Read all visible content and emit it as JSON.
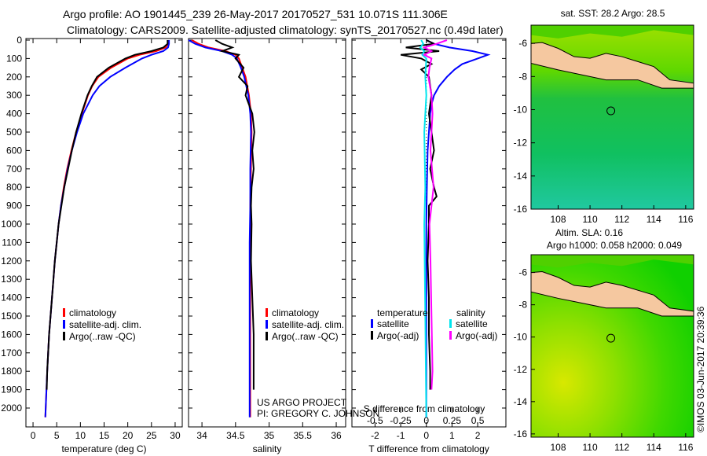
{
  "title_line1": "Argo profile: AO 1901445_239 26-May-2017 20170527_531 10.071S 111.306E",
  "title_line2": "Climatology: CARS2009. Satellite-adjusted climatology: synTS_20170527.nc (0.49d later)",
  "colors": {
    "climatology": "#ff0000",
    "satellite": "#0000ff",
    "argo": "#000000",
    "sal_satellite": "#00e5ee",
    "sal_argo": "#ff00ff",
    "land": "#f5c8a0"
  },
  "chart_data": [
    {
      "type": "line",
      "id": "temperature",
      "xlabel": "temperature (deg C)",
      "ylim": [
        2050,
        0
      ],
      "xlim": [
        -1.5,
        31.5
      ],
      "xticks": [
        "0",
        "5",
        "10",
        "15",
        "20",
        "25",
        "30"
      ],
      "xtick_values": [
        0,
        5,
        10,
        15,
        20,
        25,
        30
      ],
      "yticks": [
        "0",
        "100",
        "200",
        "300",
        "400",
        "500",
        "600",
        "700",
        "800",
        "900",
        "1000",
        "1100",
        "1200",
        "1300",
        "1400",
        "1500",
        "1600",
        "1700",
        "1800",
        "1900",
        "2000"
      ],
      "legend": [
        "climatology",
        "satellite-adj. clim.",
        "Argo(..raw -QC)"
      ],
      "series": [
        {
          "name": "climatology",
          "color": "#ff0000",
          "depth": [
            0,
            20,
            40,
            60,
            80,
            100,
            150,
            200,
            250,
            300,
            400,
            500,
            600,
            700,
            800,
            900,
            1000,
            1200,
            1400,
            1600,
            1800,
            2050
          ],
          "values": [
            28.5,
            28.5,
            28,
            26,
            22.5,
            20,
            16.5,
            13.8,
            12.5,
            11.6,
            10.3,
            9.1,
            8.1,
            7.2,
            6.5,
            5.9,
            5.4,
            4.6,
            4,
            3.4,
            3,
            2.6
          ]
        },
        {
          "name": "satellite-adj. clim.",
          "color": "#0000ff",
          "depth": [
            0,
            20,
            40,
            60,
            80,
            100,
            150,
            200,
            250,
            300,
            400,
            500,
            600,
            700,
            800,
            900,
            1000,
            1200,
            1400,
            1600,
            1800,
            2050
          ],
          "values": [
            28.7,
            28.7,
            28.5,
            27.5,
            25,
            23,
            19.5,
            16.3,
            14,
            12.6,
            10.6,
            9.3,
            8.2,
            7.3,
            6.6,
            5.9,
            5.4,
            4.6,
            4,
            3.4,
            3,
            2.6
          ]
        },
        {
          "name": "Argo(..raw -QC)",
          "color": "#000000",
          "depth": [
            0,
            20,
            40,
            60,
            80,
            100,
            150,
            200,
            250,
            300,
            400,
            500,
            600,
            700,
            800,
            900,
            1000,
            1200,
            1400,
            1600,
            1800,
            1900
          ],
          "values": [
            28.4,
            28.4,
            27.5,
            25,
            21.5,
            19.5,
            16,
            13.5,
            12.4,
            11.5,
            10.2,
            9.1,
            8.2,
            7.4,
            6.6,
            6,
            5.4,
            4.6,
            4,
            3.4,
            3,
            2.9
          ]
        }
      ]
    },
    {
      "type": "line",
      "id": "salinity",
      "xlabel": "salinity",
      "ylim": [
        2050,
        0
      ],
      "xlim": [
        33.8,
        36.14
      ],
      "xticks": [
        "34",
        "34.5",
        "35",
        "35.5",
        "36"
      ],
      "xtick_values": [
        34,
        34.5,
        35,
        35.5,
        36
      ],
      "legend": [
        "climatology",
        "satellite-adj. clim.",
        "Argo(..raw -QC)"
      ],
      "annotation": [
        "US ARGO PROJECT",
        "PI: GREGORY C. JOHNSON"
      ],
      "series": [
        {
          "name": "climatology",
          "color": "#ff0000",
          "depth": [
            0,
            20,
            40,
            60,
            80,
            100,
            150,
            200,
            300,
            400,
            500,
            700,
            900,
            1100,
            1300,
            1500,
            1700,
            2050
          ],
          "values": [
            33.85,
            33.95,
            34.1,
            34.35,
            34.5,
            34.55,
            34.6,
            34.65,
            34.7,
            34.73,
            34.74,
            34.73,
            34.72,
            34.72,
            34.72,
            34.72,
            34.72,
            34.72
          ]
        },
        {
          "name": "satellite-adj. clim.",
          "color": "#0000ff",
          "depth": [
            0,
            20,
            40,
            60,
            80,
            100,
            150,
            200,
            300,
            400,
            500,
            700,
            900,
            1100,
            1300,
            1500,
            1700,
            2050
          ],
          "values": [
            33.8,
            33.9,
            34.05,
            34.3,
            34.45,
            34.52,
            34.58,
            34.63,
            34.69,
            34.72,
            34.73,
            34.72,
            34.72,
            34.71,
            34.71,
            34.71,
            34.71,
            34.71
          ]
        },
        {
          "name": "Argo(..raw -QC)",
          "color": "#000000",
          "depth": [
            0,
            20,
            40,
            60,
            80,
            100,
            150,
            200,
            250,
            300,
            400,
            500,
            600,
            700,
            800,
            900,
            1000,
            1200,
            1400,
            1600,
            1800,
            1900
          ],
          "values": [
            34.2,
            34.3,
            34.45,
            34.3,
            34.55,
            34.5,
            34.62,
            34.55,
            34.68,
            34.65,
            34.75,
            34.78,
            34.75,
            34.77,
            34.74,
            34.73,
            34.74,
            34.73,
            34.75,
            34.77,
            34.77,
            34.77
          ]
        }
      ]
    },
    {
      "type": "line",
      "id": "difference",
      "xlabel": "T difference from climatology",
      "xlabel2": "S difference from climatology",
      "ylim": [
        2050,
        0
      ],
      "xlim": [
        -2.9,
        3.1
      ],
      "xticks": [
        "-2",
        "-1",
        "0",
        "1",
        "2"
      ],
      "xtick_values": [
        -2,
        -1,
        0,
        1,
        2
      ],
      "xticks2": [
        "-0.5",
        "-0.25",
        "0",
        "0.25",
        "0.5"
      ],
      "xtick2_values": [
        -0.5,
        -0.25,
        0,
        0.25,
        0.5
      ],
      "legend_headers": [
        "temperature",
        "salinity"
      ],
      "legend": [
        "satellite",
        "Argo(-adj)",
        "satellite",
        "Argo(-adj)"
      ],
      "series": [
        {
          "name": "T satellite",
          "color": "#0000ff",
          "depth": [
            0,
            20,
            40,
            60,
            80,
            100,
            130,
            160,
            200,
            250,
            300,
            350,
            400,
            500,
            600,
            800,
            1000,
            1500,
            2050
          ],
          "values": [
            0,
            0.3,
            0.9,
            1.8,
            2.4,
            2.0,
            1.4,
            1.1,
            0.8,
            0.5,
            0.3,
            0.2,
            0.15,
            0.1,
            0.05,
            0.02,
            0,
            0,
            0
          ]
        },
        {
          "name": "T Argo(-adj)",
          "color": "#000000",
          "depth": [
            0,
            20,
            40,
            60,
            80,
            100,
            130,
            160,
            200,
            300,
            400,
            500,
            600,
            700,
            800,
            850,
            900,
            1000,
            1200,
            1400,
            1600,
            1800,
            1900
          ],
          "values": [
            0,
            0.3,
            -0.8,
            0.5,
            -1,
            -0.2,
            0.2,
            -0.2,
            0.1,
            0.2,
            0.1,
            0.2,
            0.3,
            0.15,
            0.3,
            0.4,
            0.1,
            0.1,
            0.05,
            0.1,
            0.1,
            0.15,
            0.15
          ]
        },
        {
          "name": "S satellite",
          "color": "#00e5ee",
          "depth": [
            0,
            20,
            40,
            60,
            80,
            100,
            200,
            300,
            500,
            800,
            1000,
            1500,
            2050
          ],
          "values": [
            -0.05,
            -0.03,
            -0.06,
            -0.02,
            -0.04,
            0,
            -0.01,
            0,
            -0.02,
            -0.01,
            -0.02,
            -0.01,
            0
          ]
        },
        {
          "name": "S Argo(-adj)",
          "color": "#ff00ff",
          "depth": [
            0,
            20,
            40,
            60,
            80,
            100,
            150,
            200,
            300,
            400,
            600,
            800,
            1000,
            1200,
            1500,
            1800,
            1900
          ],
          "values": [
            0.2,
            0.1,
            -0.02,
            0.05,
            -0.02,
            0.05,
            0.03,
            0.02,
            0.05,
            0.06,
            0.04,
            0.07,
            0.03,
            0.04,
            0.05,
            0.06,
            0.05
          ]
        }
      ]
    },
    {
      "type": "heatmap",
      "id": "sst-map",
      "title": "sat. SST: 28.2 Argo: 28.5",
      "xticks": [
        "108",
        "110",
        "112",
        "114",
        "116"
      ],
      "xtick_values": [
        108,
        110,
        112,
        114,
        116
      ],
      "yticks": [
        "-6",
        "-8",
        "-10",
        "-12",
        "-14",
        "-16"
      ],
      "ytick_values": [
        -6,
        -8,
        -10,
        -12,
        -14,
        -16
      ],
      "xlim": [
        106.3,
        116.5
      ],
      "ylim": [
        -16,
        -4.9
      ],
      "float_position": [
        111.306,
        -10.071
      ]
    },
    {
      "type": "heatmap",
      "id": "sla-map",
      "title": "Altim. SLA: 0.16",
      "subtitle": "Argo h1000: 0.058 h2000: 0.049",
      "xticks": [
        "108",
        "110",
        "112",
        "114",
        "116"
      ],
      "xtick_values": [
        108,
        110,
        112,
        114,
        116
      ],
      "yticks": [
        "-6",
        "-8",
        "-10",
        "-12",
        "-14",
        "-16"
      ],
      "ytick_values": [
        -6,
        -8,
        -10,
        -12,
        -14,
        -16
      ],
      "xlim": [
        106.3,
        116.5
      ],
      "ylim": [
        -16.2,
        -4.9
      ],
      "float_position": [
        111.306,
        -10.071
      ]
    }
  ],
  "credit": "©IMOS 03-Jun-2017 20:39:36"
}
